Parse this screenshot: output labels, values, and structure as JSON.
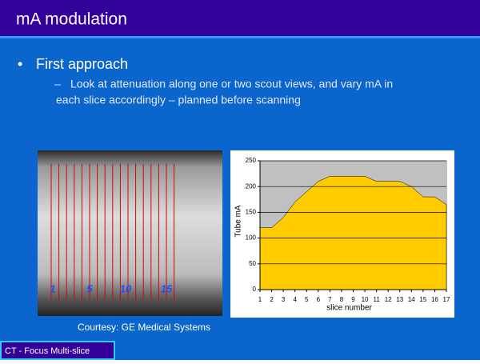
{
  "slide": {
    "title": "mA modulation",
    "bullet": "First approach",
    "sub_bullet_lines": [
      "Look at attenuation along one or two scout views, and vary mA in",
      "each slice accordingly – planned before scanning"
    ],
    "scout_labels": [
      "1",
      "5",
      "10",
      "15"
    ],
    "caption": "Courtesy: GE Medical Systems",
    "footer": "CT - Focus Multi-slice"
  },
  "chart_data": {
    "type": "area",
    "x": [
      1,
      2,
      3,
      4,
      5,
      6,
      7,
      8,
      9,
      10,
      11,
      12,
      13,
      14,
      15,
      16,
      17
    ],
    "values": [
      120,
      120,
      140,
      170,
      190,
      210,
      220,
      220,
      220,
      220,
      210,
      210,
      210,
      200,
      180,
      180,
      165
    ],
    "color": "#ffcc00",
    "xlabel": "slice number",
    "ylabel": "Tube mA",
    "xlim": [
      1,
      17
    ],
    "xticks": [
      1,
      2,
      3,
      4,
      5,
      6,
      7,
      8,
      9,
      10,
      11,
      12,
      13,
      14,
      15,
      16,
      17
    ],
    "ylim": [
      0,
      250
    ],
    "yticks": [
      0,
      50,
      100,
      150,
      200,
      250
    ],
    "grid": true
  }
}
